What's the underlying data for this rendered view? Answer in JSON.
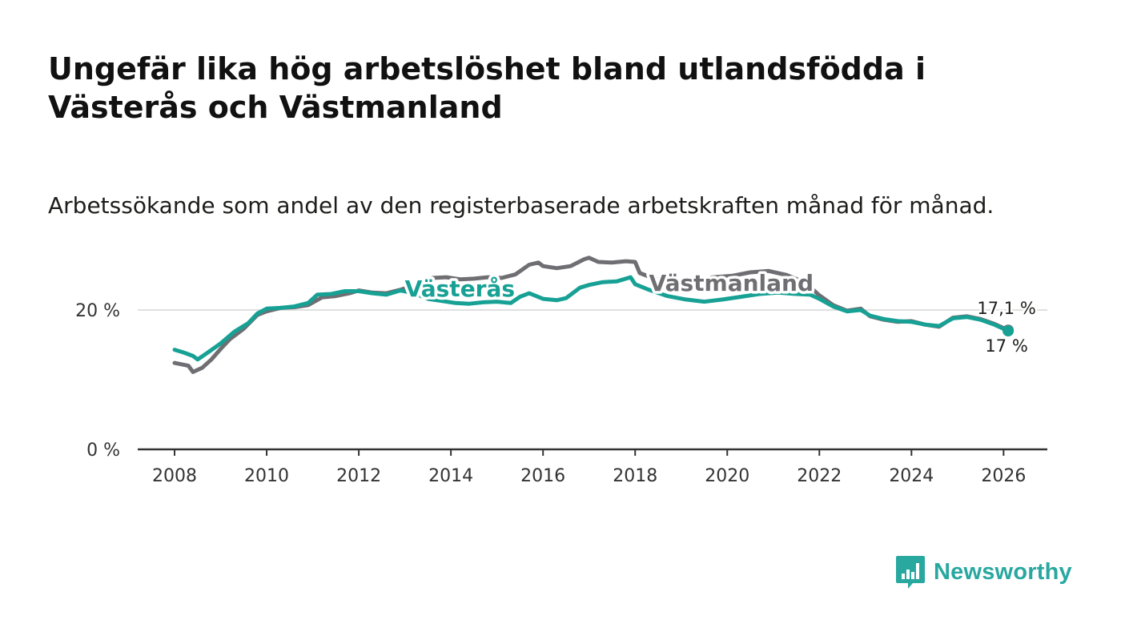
{
  "title": "Ungefär lika hög arbetslöshet bland utlandsfödda i Västerås och Västmanland",
  "subtitle": "Arbetssökande som andel av den registerbaserade arbetskraften månad för månad.",
  "brand": {
    "name": "Newsworthy",
    "icon": "bar-chart-logo-icon"
  },
  "colors": {
    "vasteras": "#17a195",
    "vastmanland": "#6e6e73",
    "axis": "#333333",
    "grid": "#d6d6d6"
  },
  "chart_data": {
    "type": "line",
    "x_ticks": [
      "2008",
      "2010",
      "2012",
      "2014",
      "2016",
      "2018",
      "2020",
      "2022",
      "2024",
      "2026"
    ],
    "y_ticks": [
      "0 %",
      "20 %"
    ],
    "xlim": [
      2007.2,
      2026.95
    ],
    "ylim": [
      0,
      30
    ],
    "series": [
      {
        "name": "Västmanland",
        "color": "#6e6e73",
        "end_label": "17,1 %",
        "points": [
          [
            2008.0,
            12.4
          ],
          [
            2008.3,
            12.0
          ],
          [
            2008.4,
            11.1
          ],
          [
            2008.6,
            11.7
          ],
          [
            2008.8,
            12.9
          ],
          [
            2009.0,
            14.4
          ],
          [
            2009.2,
            15.8
          ],
          [
            2009.5,
            17.3
          ],
          [
            2009.8,
            19.3
          ],
          [
            2010.0,
            19.8
          ],
          [
            2010.3,
            20.3
          ],
          [
            2010.6,
            20.4
          ],
          [
            2010.9,
            20.7
          ],
          [
            2011.2,
            21.8
          ],
          [
            2011.5,
            22.0
          ],
          [
            2011.8,
            22.4
          ],
          [
            2012.0,
            22.8
          ],
          [
            2012.3,
            22.5
          ],
          [
            2012.6,
            22.4
          ],
          [
            2012.9,
            22.9
          ],
          [
            2013.2,
            23.5
          ],
          [
            2013.6,
            24.6
          ],
          [
            2013.9,
            24.7
          ],
          [
            2014.2,
            24.4
          ],
          [
            2014.5,
            24.5
          ],
          [
            2014.8,
            24.7
          ],
          [
            2015.1,
            24.6
          ],
          [
            2015.4,
            25.1
          ],
          [
            2015.7,
            26.5
          ],
          [
            2015.9,
            26.8
          ],
          [
            2016.0,
            26.3
          ],
          [
            2016.3,
            26.0
          ],
          [
            2016.6,
            26.3
          ],
          [
            2016.9,
            27.3
          ],
          [
            2017.0,
            27.5
          ],
          [
            2017.2,
            26.9
          ],
          [
            2017.5,
            26.8
          ],
          [
            2017.8,
            27.0
          ],
          [
            2018.0,
            26.9
          ],
          [
            2018.1,
            25.3
          ],
          [
            2018.5,
            24.3
          ],
          [
            2018.9,
            23.5
          ],
          [
            2019.3,
            24.2
          ],
          [
            2019.7,
            24.7
          ],
          [
            2020.1,
            24.9
          ],
          [
            2020.5,
            25.4
          ],
          [
            2020.9,
            25.6
          ],
          [
            2021.3,
            25.0
          ],
          [
            2021.7,
            23.9
          ],
          [
            2022.0,
            22.1
          ],
          [
            2022.3,
            20.7
          ],
          [
            2022.6,
            19.9
          ],
          [
            2022.9,
            20.2
          ],
          [
            2023.1,
            19.1
          ],
          [
            2023.4,
            18.6
          ],
          [
            2023.7,
            18.3
          ],
          [
            2024.0,
            18.4
          ],
          [
            2024.3,
            17.9
          ],
          [
            2024.6,
            17.6
          ],
          [
            2024.9,
            18.9
          ],
          [
            2025.2,
            19.1
          ],
          [
            2025.5,
            18.7
          ],
          [
            2025.8,
            18.0
          ],
          [
            2026.1,
            17.1
          ]
        ]
      },
      {
        "name": "Västerås",
        "color": "#17a195",
        "end_label": "17 %",
        "points": [
          [
            2008.0,
            14.3
          ],
          [
            2008.2,
            13.9
          ],
          [
            2008.4,
            13.4
          ],
          [
            2008.5,
            12.9
          ],
          [
            2008.7,
            13.8
          ],
          [
            2009.0,
            15.2
          ],
          [
            2009.3,
            16.9
          ],
          [
            2009.6,
            18.1
          ],
          [
            2009.8,
            19.5
          ],
          [
            2010.0,
            20.2
          ],
          [
            2010.3,
            20.3
          ],
          [
            2010.6,
            20.5
          ],
          [
            2010.9,
            21.0
          ],
          [
            2011.1,
            22.2
          ],
          [
            2011.4,
            22.3
          ],
          [
            2011.7,
            22.7
          ],
          [
            2012.0,
            22.7
          ],
          [
            2012.3,
            22.4
          ],
          [
            2012.6,
            22.2
          ],
          [
            2012.9,
            22.8
          ],
          [
            2013.2,
            22.4
          ],
          [
            2013.5,
            21.6
          ],
          [
            2013.8,
            21.3
          ],
          [
            2014.1,
            21.0
          ],
          [
            2014.4,
            20.9
          ],
          [
            2014.7,
            21.1
          ],
          [
            2015.0,
            21.2
          ],
          [
            2015.3,
            21.0
          ],
          [
            2015.5,
            21.9
          ],
          [
            2015.7,
            22.4
          ],
          [
            2016.0,
            21.6
          ],
          [
            2016.3,
            21.4
          ],
          [
            2016.5,
            21.7
          ],
          [
            2016.8,
            23.2
          ],
          [
            2017.0,
            23.6
          ],
          [
            2017.3,
            24.0
          ],
          [
            2017.6,
            24.1
          ],
          [
            2017.9,
            24.7
          ],
          [
            2018.0,
            23.7
          ],
          [
            2018.3,
            22.9
          ],
          [
            2018.7,
            22.0
          ],
          [
            2019.1,
            21.5
          ],
          [
            2019.5,
            21.2
          ],
          [
            2019.9,
            21.5
          ],
          [
            2020.3,
            21.9
          ],
          [
            2020.7,
            22.3
          ],
          [
            2021.1,
            22.5
          ],
          [
            2021.5,
            22.3
          ],
          [
            2021.8,
            22.2
          ],
          [
            2022.0,
            21.6
          ],
          [
            2022.3,
            20.5
          ],
          [
            2022.6,
            19.8
          ],
          [
            2022.9,
            20.0
          ],
          [
            2023.1,
            19.2
          ],
          [
            2023.4,
            18.7
          ],
          [
            2023.7,
            18.4
          ],
          [
            2024.0,
            18.3
          ],
          [
            2024.3,
            17.9
          ],
          [
            2024.6,
            17.7
          ],
          [
            2024.9,
            18.8
          ],
          [
            2025.2,
            19.0
          ],
          [
            2025.5,
            18.6
          ],
          [
            2025.8,
            17.9
          ],
          [
            2026.1,
            17.0
          ]
        ]
      }
    ],
    "labels": [
      {
        "text": "Västerås",
        "series": "Västerås",
        "x": 2013.0,
        "y": 23.0
      },
      {
        "text": "Västmanland",
        "series": "Västmanland",
        "x": 2018.3,
        "y": 23.8
      }
    ]
  }
}
